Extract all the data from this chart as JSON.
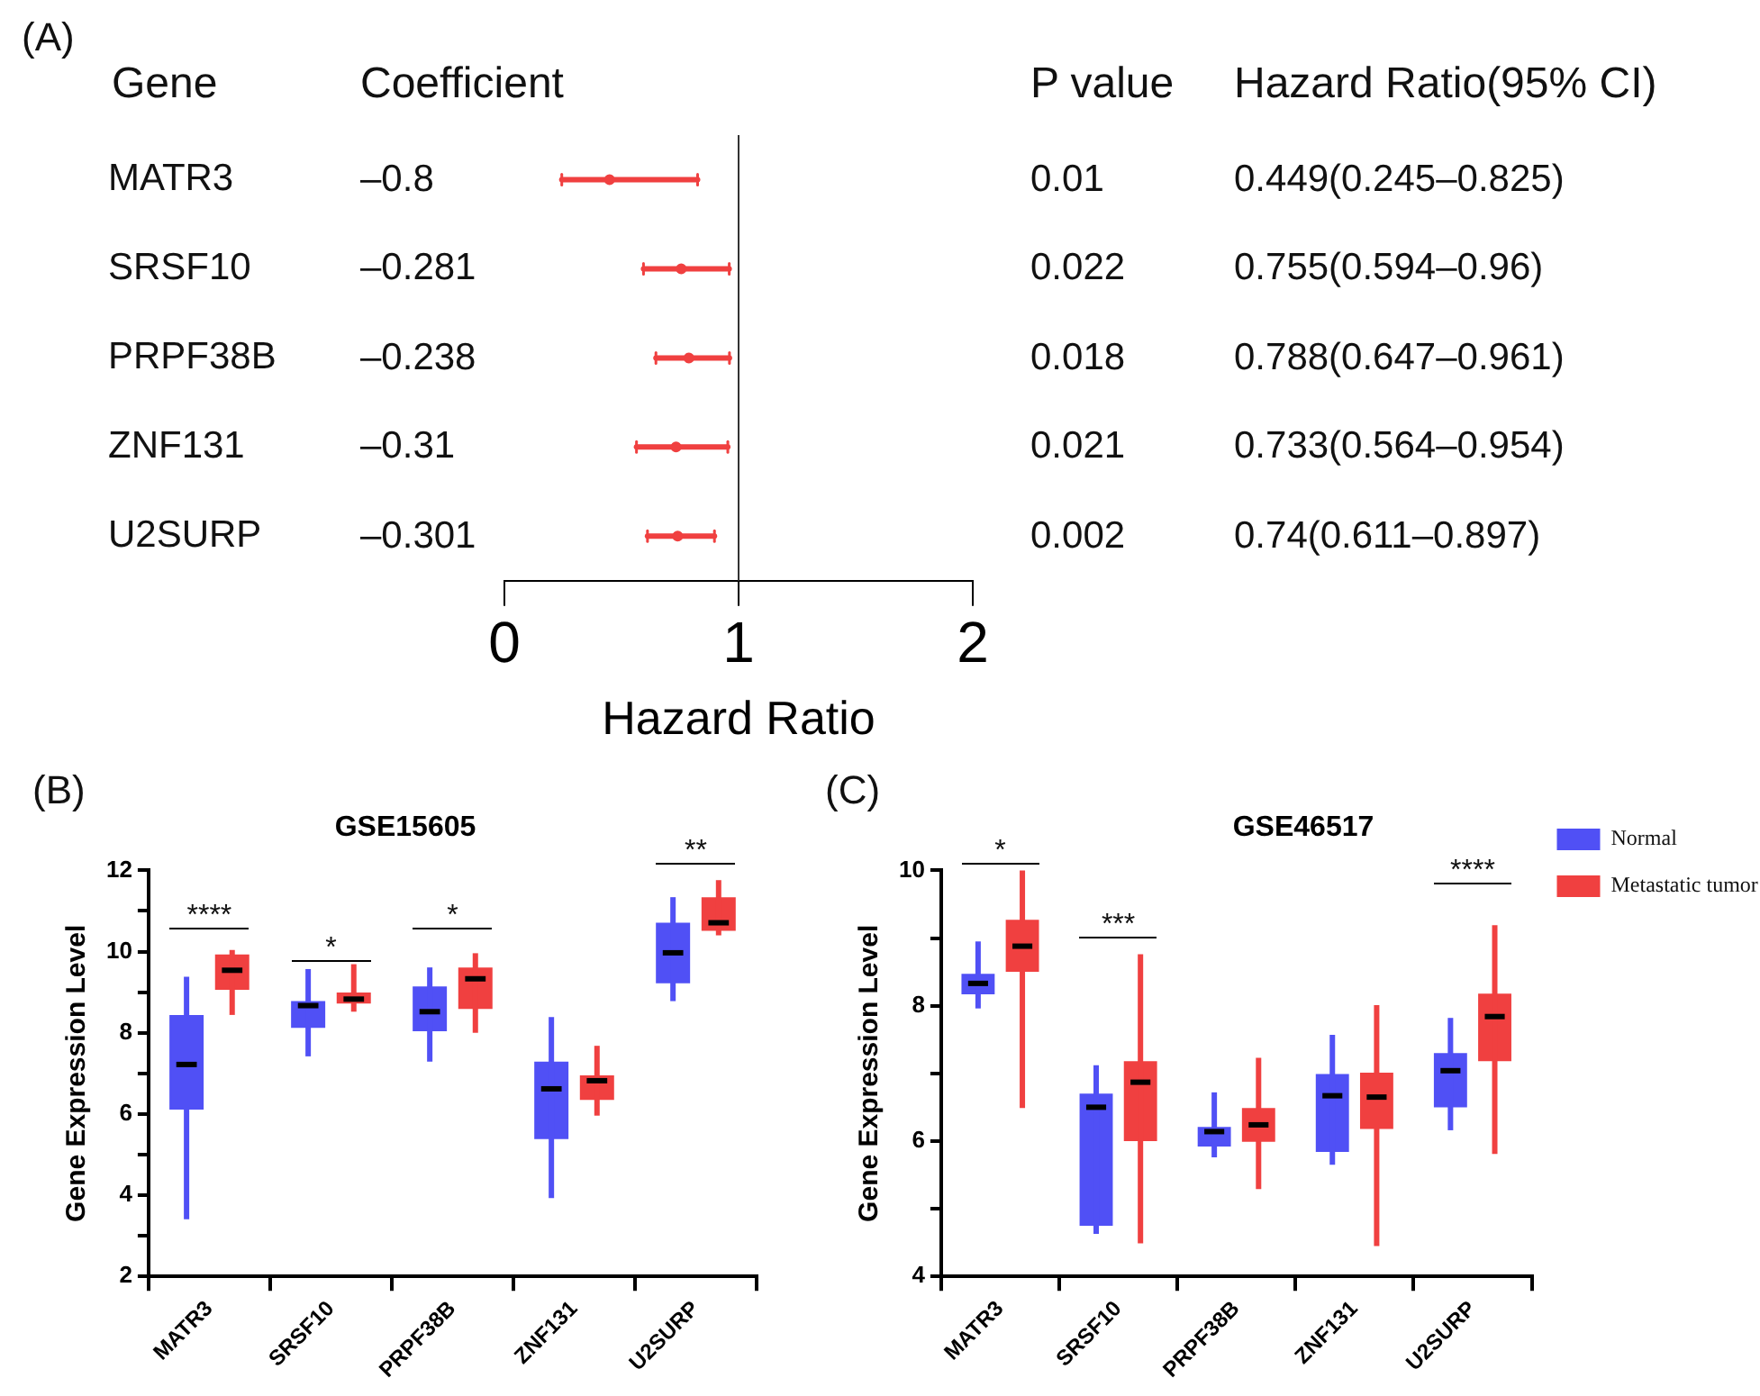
{
  "chart_data": [
    {
      "type": "scatter",
      "orientation": "horizontal",
      "categories": [
        "MATR3",
        "SRSF10",
        "PRPF38B",
        "ZNF131",
        "U2SURP"
      ],
      "values": [
        0.449,
        0.755,
        0.788,
        0.733,
        0.74
      ],
      "errors": [
        [
          0.245,
          0.825
        ],
        [
          0.594,
          0.96
        ],
        [
          0.647,
          0.961
        ],
        [
          0.564,
          0.954
        ],
        [
          0.611,
          0.897
        ]
      ],
      "color": "#f04040",
      "marker": "circle",
      "xlim": [
        0,
        2
      ],
      "xticks": [
        0,
        1,
        2
      ],
      "xlabel": "Hazard Ratio",
      "ref_lines": [
        {
          "axis": "x",
          "value": 1
        }
      ],
      "grid": false,
      "legend": false,
      "annotations": [
        "(A)",
        "Gene",
        "Coefficient",
        "P value",
        "Hazard Ratio(95% CI)",
        "–0.8",
        "–0.281",
        "–0.238",
        "–0.31",
        "–0.301",
        "0.01",
        "0.022",
        "0.018",
        "0.021",
        "0.002",
        "0.449(0.245–0.825)",
        "0.755(0.594–0.96)",
        "0.788(0.647–0.961)",
        "0.733(0.564–0.954)",
        "0.74(0.611–0.897)"
      ]
    },
    {
      "type": "box",
      "title": "GSE15605",
      "ylabel": "Gene Expression Level",
      "categories": [
        "MATR3",
        "SRSF10",
        "PRPF38B",
        "ZNF131",
        "U2SURP"
      ],
      "ylim": [
        2,
        12
      ],
      "yticks": [
        2,
        {
          "value": 3,
          "label": null
        },
        4,
        {
          "value": 5,
          "label": null
        },
        6,
        {
          "value": 7,
          "label": null
        },
        8,
        {
          "value": 9,
          "label": null
        },
        10,
        {
          "value": 11,
          "label": null
        },
        12
      ],
      "grid": false,
      "legend": false,
      "series": [
        {
          "color": "#5050f5",
          "boxes": [
            {
              "low": 3.41,
              "q1": 6.11,
              "median": 7.22,
              "q3": 8.44,
              "high": 9.38
            },
            {
              "low": 7.42,
              "q1": 8.12,
              "median": 8.67,
              "q3": 8.78,
              "high": 9.57
            },
            {
              "low": 7.29,
              "q1": 8.04,
              "median": 8.52,
              "q3": 9.14,
              "high": 9.61
            },
            {
              "low": 3.93,
              "q1": 5.38,
              "median": 6.62,
              "q3": 7.29,
              "high": 8.39
            },
            {
              "low": 8.78,
              "q1": 9.22,
              "median": 9.97,
              "q3": 10.71,
              "high": 11.34
            }
          ]
        },
        {
          "color": "#f04040",
          "boxes": [
            {
              "low": 8.44,
              "q1": 9.06,
              "median": 9.54,
              "q3": 9.93,
              "high": 10.04
            },
            {
              "low": 8.52,
              "q1": 8.72,
              "median": 8.83,
              "q3": 8.99,
              "high": 9.69
            },
            {
              "low": 8.0,
              "q1": 8.59,
              "median": 9.33,
              "q3": 9.61,
              "high": 9.96
            },
            {
              "low": 5.96,
              "q1": 6.35,
              "median": 6.82,
              "q3": 6.95,
              "high": 7.68
            },
            {
              "low": 10.4,
              "q1": 10.51,
              "median": 10.71,
              "q3": 11.34,
              "high": 11.76
            }
          ]
        }
      ],
      "annotations": [
        "(B)",
        "****",
        "*",
        "*",
        "**"
      ]
    },
    {
      "type": "box",
      "title": "GSE46517",
      "ylabel": "Gene Expression Level",
      "categories": [
        "MATR3",
        "SRSF10",
        "PRPF38B",
        "ZNF131",
        "U2SURP"
      ],
      "ylim": [
        4,
        10
      ],
      "yticks": [
        4,
        {
          "value": 5,
          "label": null
        },
        6,
        {
          "value": 7,
          "label": null
        },
        8,
        {
          "value": 9,
          "label": null
        },
        10
      ],
      "grid": false,
      "legend": "top right",
      "series": [
        {
          "name": "Normal",
          "color": "#5050f5",
          "boxes": [
            {
              "low": 7.96,
              "q1": 8.17,
              "median": 8.33,
              "q3": 8.47,
              "high": 8.95
            },
            {
              "low": 4.63,
              "q1": 4.75,
              "median": 6.5,
              "q3": 6.7,
              "high": 7.12
            },
            {
              "low": 5.76,
              "q1": 5.92,
              "median": 6.14,
              "q3": 6.21,
              "high": 6.72
            },
            {
              "low": 5.65,
              "q1": 5.84,
              "median": 6.67,
              "q3": 6.99,
              "high": 7.57
            },
            {
              "low": 6.16,
              "q1": 6.5,
              "median": 7.04,
              "q3": 7.3,
              "high": 7.82
            }
          ]
        },
        {
          "name": "Metastatic tumor",
          "color": "#f04040",
          "boxes": [
            {
              "low": 6.49,
              "q1": 8.5,
              "median": 8.88,
              "q3": 9.27,
              "high": 10.0
            },
            {
              "low": 4.49,
              "q1": 6.0,
              "median": 6.87,
              "q3": 7.18,
              "high": 8.76
            },
            {
              "low": 5.29,
              "q1": 5.99,
              "median": 6.24,
              "q3": 6.49,
              "high": 7.23
            },
            {
              "low": 4.45,
              "q1": 6.18,
              "median": 6.65,
              "q3": 7.01,
              "high": 8.01
            },
            {
              "low": 5.81,
              "q1": 7.18,
              "median": 7.84,
              "q3": 8.18,
              "high": 9.19
            }
          ]
        }
      ],
      "annotations": [
        "(C)",
        "*",
        "***",
        "****"
      ]
    }
  ]
}
